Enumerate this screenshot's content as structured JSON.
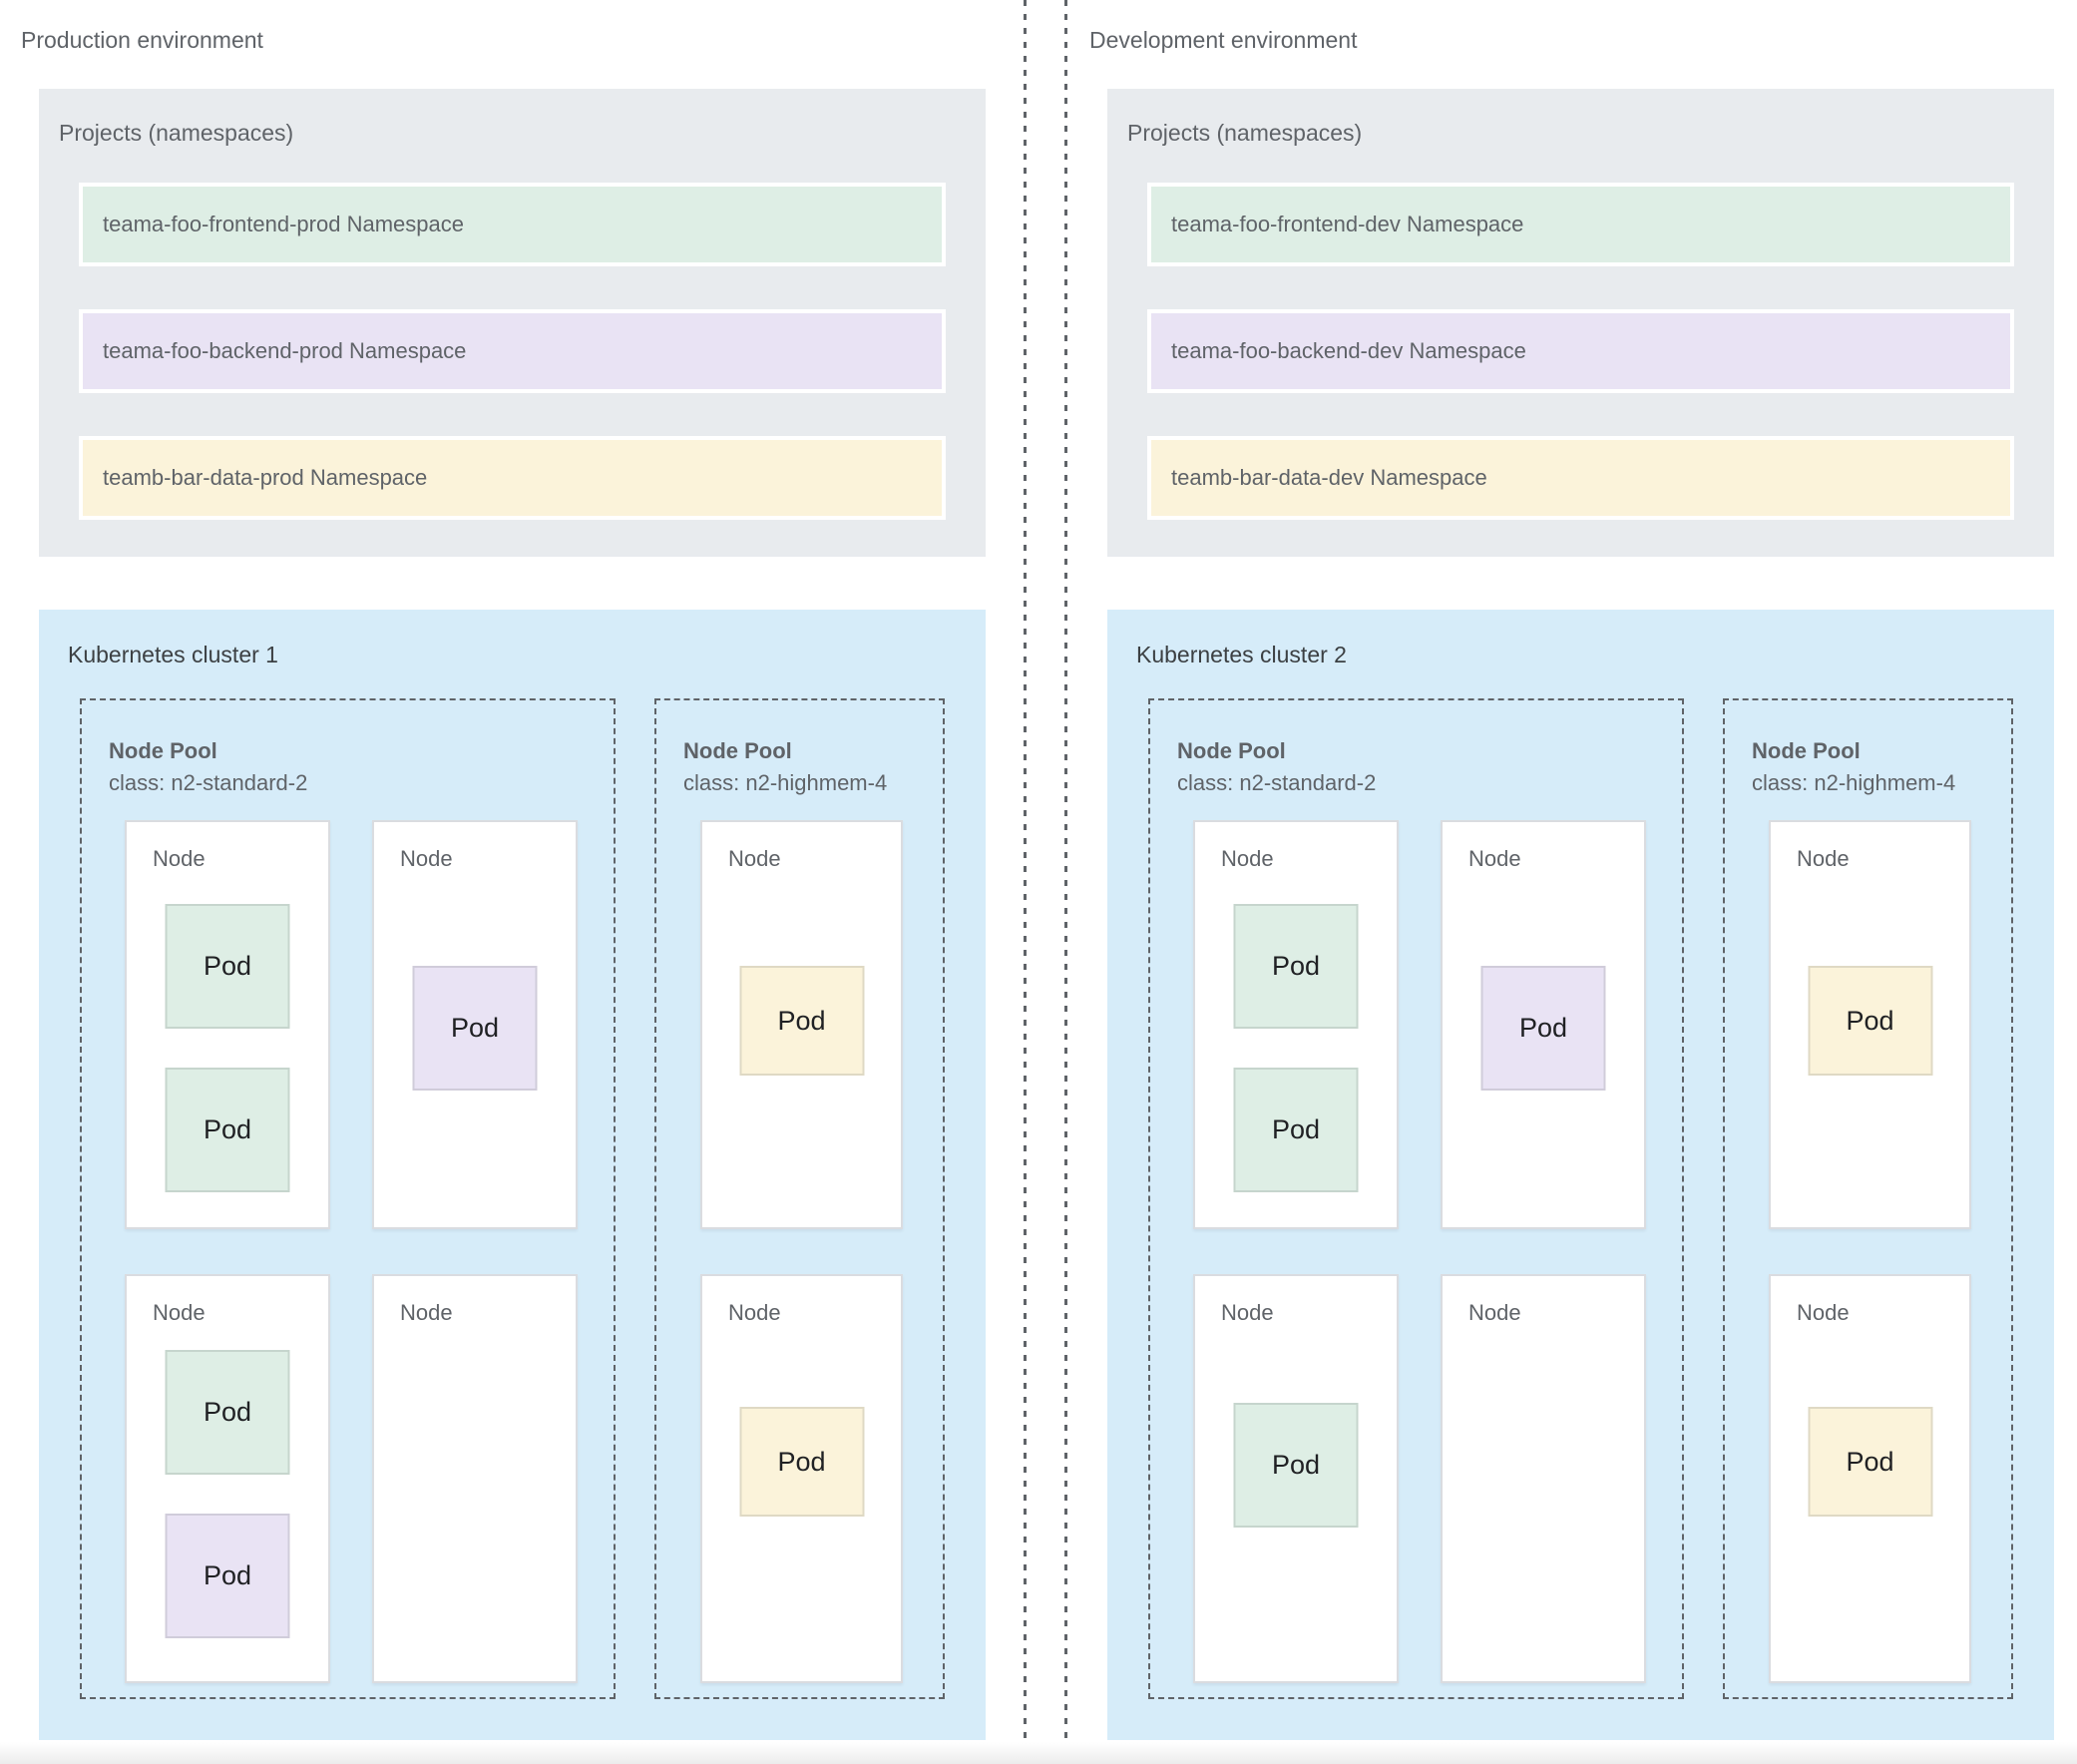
{
  "palette": {
    "frontend_green": "#deeee5",
    "backend_purple": "#e9e3f4",
    "data_yellow": "#fbf3da",
    "cluster_blue_bg": "#d6ecf9",
    "projects_grey_bg": "#e8ebee",
    "label_grey": "#5f6368",
    "dark_text": "#202124"
  },
  "environments": [
    {
      "title": "Production environment",
      "projects": {
        "label": "Projects (namespaces)",
        "namespaces": [
          {
            "label": "teama-foo-frontend-prod Namespace",
            "color": "green"
          },
          {
            "label": "teama-foo-backend-prod Namespace",
            "color": "purple"
          },
          {
            "label": "teamb-bar-data-prod Namespace",
            "color": "yellow"
          }
        ]
      },
      "cluster": {
        "title": "Kubernetes cluster 1",
        "node_pools": [
          {
            "title": "Node Pool",
            "class_label": "class: n2-standard-2",
            "nodes": [
              {
                "label": "Node",
                "pods": [
                  {
                    "label": "Pod",
                    "color": "green",
                    "top_pct": 20
                  },
                  {
                    "label": "Pod",
                    "color": "green",
                    "top_pct": 60
                  }
                ]
              },
              {
                "label": "Node",
                "pods": [
                  {
                    "label": "Pod",
                    "color": "purple",
                    "top_pct": 35
                  }
                ]
              },
              {
                "label": "Node",
                "pods": [
                  {
                    "label": "Pod",
                    "color": "green",
                    "top_pct": 18
                  },
                  {
                    "label": "Pod",
                    "color": "purple",
                    "top_pct": 58
                  }
                ]
              },
              {
                "label": "Node",
                "pods": []
              }
            ]
          },
          {
            "title": "Node Pool",
            "class_label": "class: n2-highmem-4",
            "nodes": [
              {
                "label": "Node",
                "pods": [
                  {
                    "label": "Pod",
                    "color": "yellow",
                    "top_pct": 35
                  }
                ]
              },
              {
                "label": "Node",
                "pods": [
                  {
                    "label": "Pod",
                    "color": "yellow",
                    "top_pct": 32
                  }
                ]
              }
            ]
          }
        ]
      }
    },
    {
      "title": "Development environment",
      "projects": {
        "label": "Projects (namespaces)",
        "namespaces": [
          {
            "label": "teama-foo-frontend-dev Namespace",
            "color": "green"
          },
          {
            "label": "teama-foo-backend-dev Namespace",
            "color": "purple"
          },
          {
            "label": "teamb-bar-data-dev Namespace",
            "color": "yellow"
          }
        ]
      },
      "cluster": {
        "title": "Kubernetes cluster 2",
        "node_pools": [
          {
            "title": "Node Pool",
            "class_label": "class: n2-standard-2",
            "nodes": [
              {
                "label": "Node",
                "pods": [
                  {
                    "label": "Pod",
                    "color": "green",
                    "top_pct": 20
                  },
                  {
                    "label": "Pod",
                    "color": "green",
                    "top_pct": 60
                  }
                ]
              },
              {
                "label": "Node",
                "pods": [
                  {
                    "label": "Pod",
                    "color": "purple",
                    "top_pct": 35
                  }
                ]
              },
              {
                "label": "Node",
                "pods": [
                  {
                    "label": "Pod",
                    "color": "green",
                    "top_pct": 31
                  }
                ]
              },
              {
                "label": "Node",
                "pods": []
              }
            ]
          },
          {
            "title": "Node Pool",
            "class_label": "class: n2-highmem-4",
            "nodes": [
              {
                "label": "Node",
                "pods": [
                  {
                    "label": "Pod",
                    "color": "yellow",
                    "top_pct": 35
                  }
                ]
              },
              {
                "label": "Node",
                "pods": [
                  {
                    "label": "Pod",
                    "color": "yellow",
                    "top_pct": 32
                  }
                ]
              }
            ]
          }
        ]
      }
    }
  ]
}
